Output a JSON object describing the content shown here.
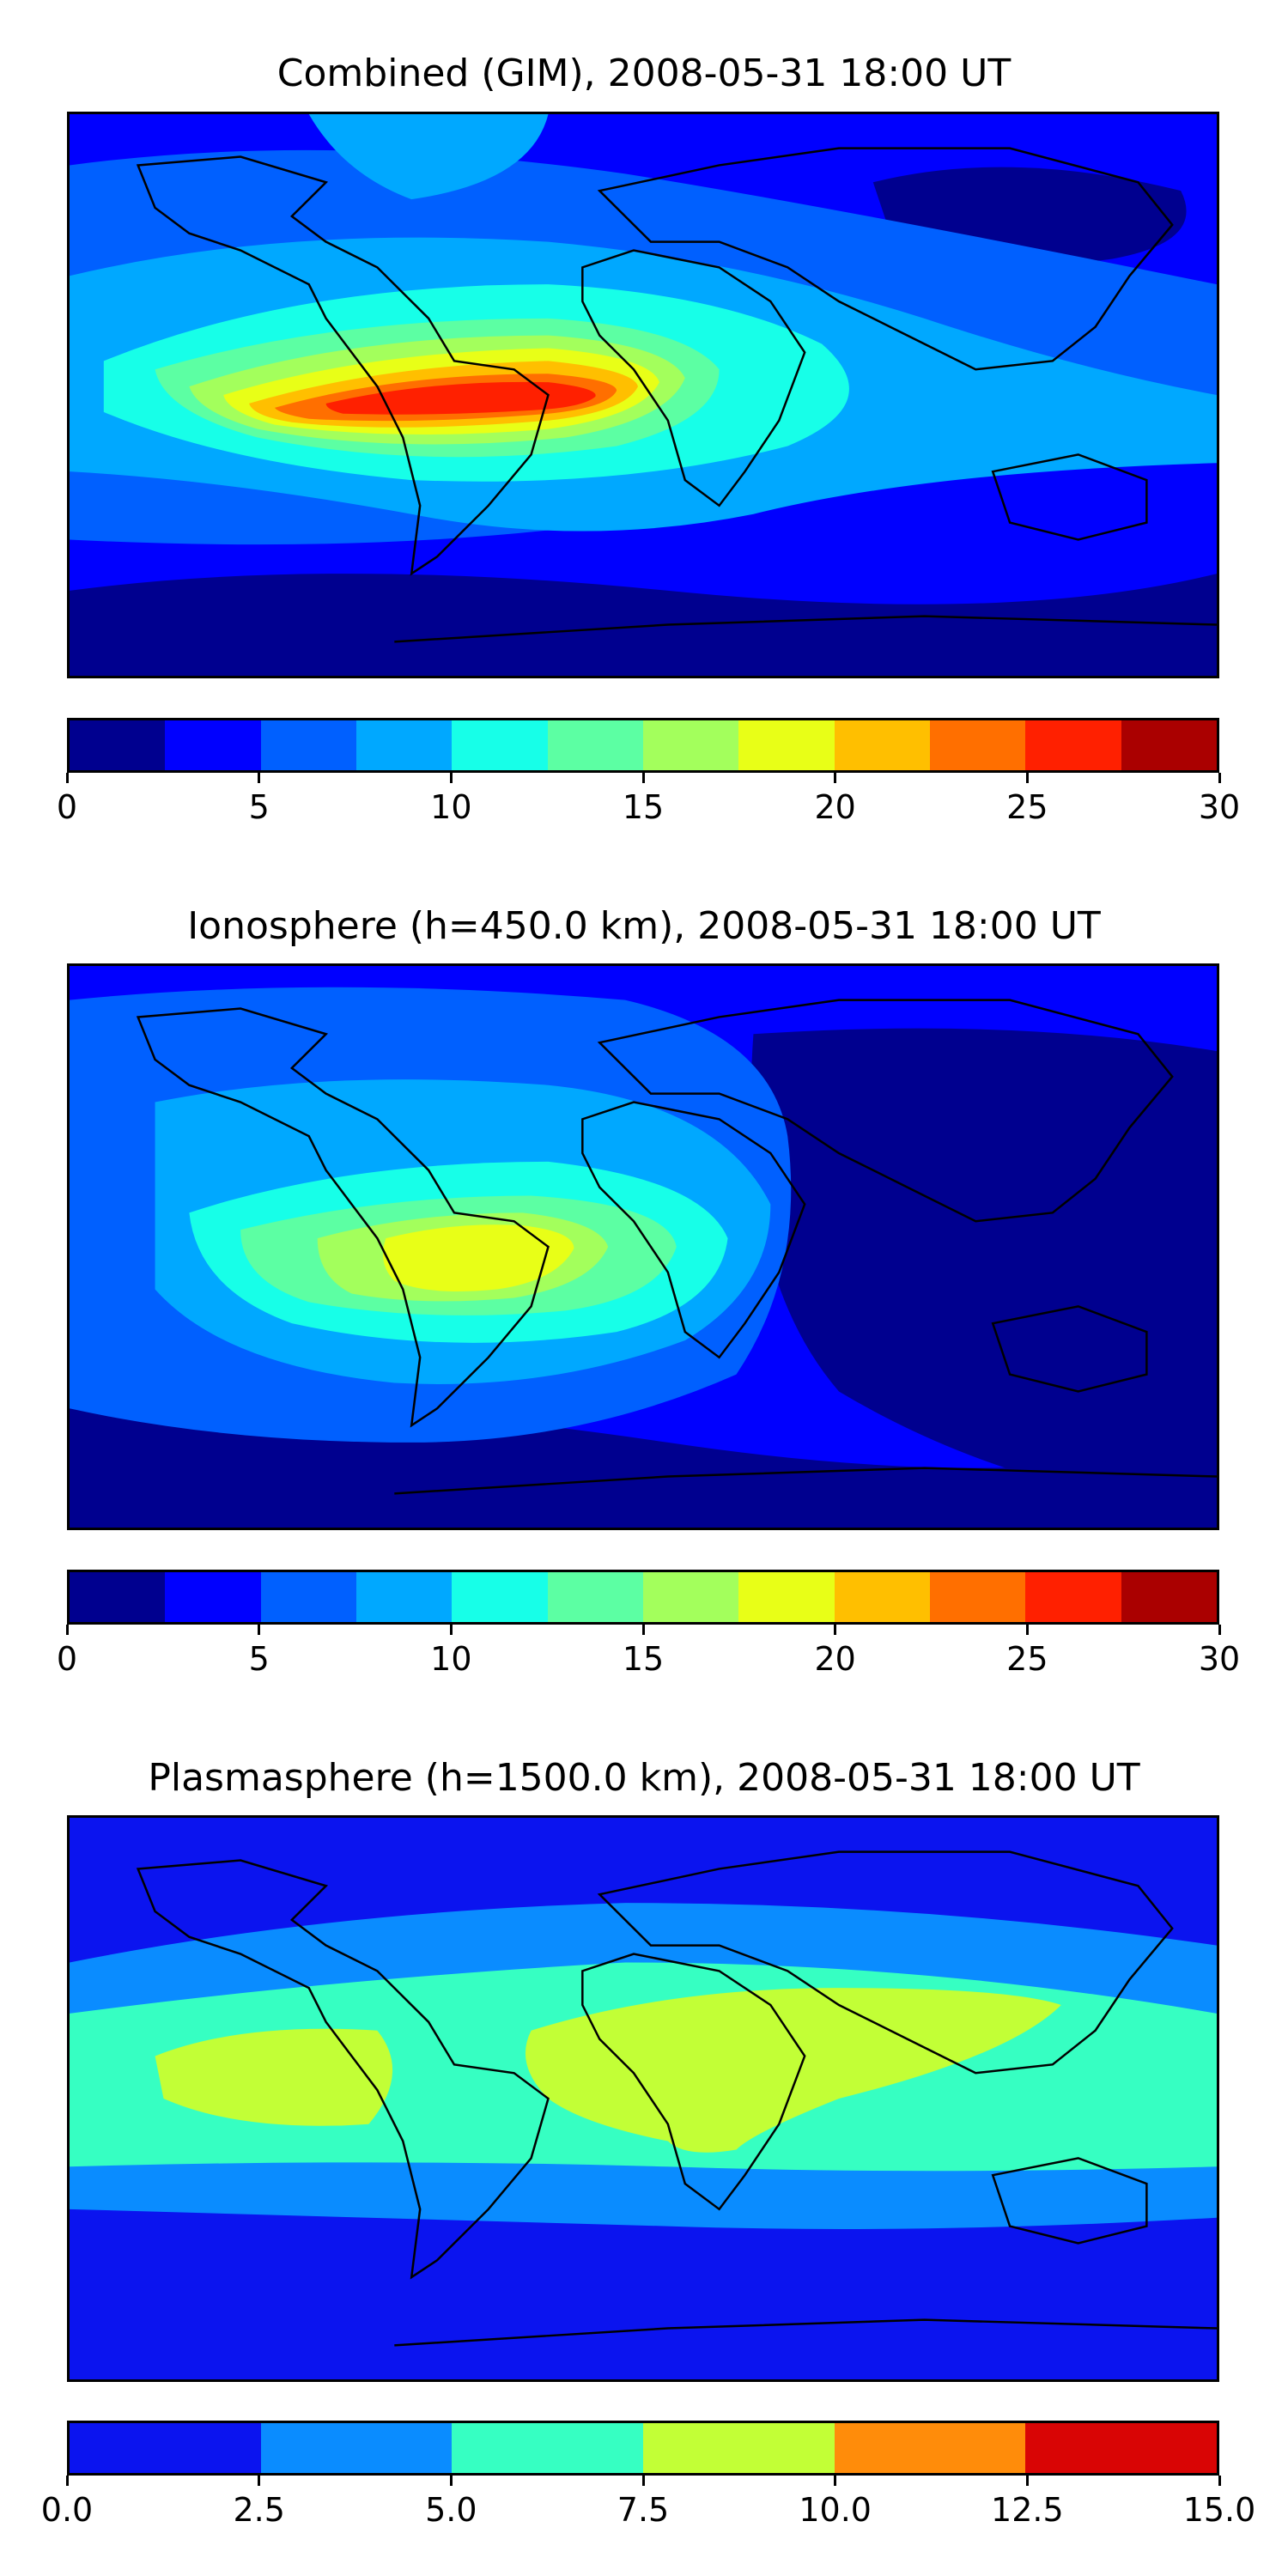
{
  "panels": [
    {
      "title": "Combined (GIM), 2008-05-31 18:00 UT",
      "colorbar": {
        "colors": [
          "#00008f",
          "#0000ff",
          "#0060ff",
          "#00a8ff",
          "#17ffe8",
          "#5cffa3",
          "#a3ff5c",
          "#e8ff17",
          "#ffbf00",
          "#ff6f00",
          "#ff2000",
          "#aa0000"
        ],
        "tick_labels": [
          "0",
          "5",
          "10",
          "15",
          "20",
          "25",
          "30"
        ],
        "range": [
          0,
          30
        ]
      }
    },
    {
      "title": "Ionosphere  (h=450.0 km), 2008-05-31 18:00 UT",
      "colorbar": {
        "colors": [
          "#00008f",
          "#0000ff",
          "#0060ff",
          "#00a8ff",
          "#17ffe8",
          "#5cffa3",
          "#a3ff5c",
          "#e8ff17",
          "#ffbf00",
          "#ff6f00",
          "#ff2000",
          "#aa0000"
        ],
        "tick_labels": [
          "0",
          "5",
          "10",
          "15",
          "20",
          "25",
          "30"
        ],
        "range": [
          0,
          30
        ]
      }
    },
    {
      "title": "Plasmasphere (h=1500.0 km), 2008-05-31 18:00 UT",
      "colorbar": {
        "colors": [
          "#0b14ef",
          "#0a8cff",
          "#36ffc2",
          "#c2ff36",
          "#ff8c0a",
          "#d90505"
        ],
        "tick_labels": [
          "0.0",
          "2.5",
          "5.0",
          "7.5",
          "10.0",
          "12.5",
          "15.0"
        ],
        "range": [
          0,
          15
        ]
      }
    }
  ]
}
